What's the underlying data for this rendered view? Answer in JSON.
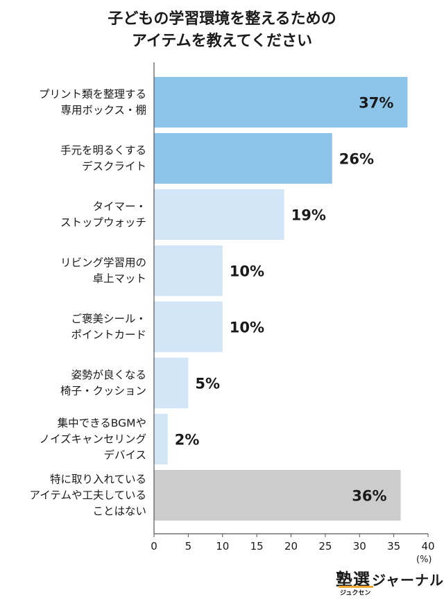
{
  "title_line1": "子どもの学習環境を整えるための",
  "title_line2": "アイテムを教えてください",
  "unit_label": "(%)",
  "logo": {
    "main": "塾選",
    "kana": "ジャーナル",
    "sub": "ジュクセン"
  },
  "chart_data": {
    "type": "bar",
    "orientation": "horizontal",
    "title": "子どもの学習環境を整えるための アイテムを教えてください",
    "categories": [
      [
        "プリント類を整理する",
        "専用ボックス・棚"
      ],
      [
        "手元を明るくする",
        "デスクライト"
      ],
      [
        "タイマー・",
        "ストップウォッチ"
      ],
      [
        "リビング学習用の",
        "卓上マット"
      ],
      [
        "ご褒美シール・",
        "ポイントカード"
      ],
      [
        "姿勢が良くなる",
        "椅子・クッション"
      ],
      [
        "集中できるBGMや",
        "ノイズキャンセリング",
        "デバイス"
      ],
      [
        "特に取り入れている",
        "アイテムや工夫している",
        "ことはない"
      ]
    ],
    "values": [
      37,
      26,
      19,
      10,
      10,
      5,
      2,
      36
    ],
    "value_labels": [
      "37%",
      "26%",
      "19%",
      "10%",
      "10%",
      "5%",
      "2%",
      "36%"
    ],
    "bar_colors": [
      "#8cc4ea",
      "#8cc4ea",
      "#d3e6f8",
      "#d3e6f8",
      "#d3e6f8",
      "#d3e6f8",
      "#d3e6f8",
      "#cccccc"
    ],
    "label_inside": [
      true,
      false,
      false,
      false,
      false,
      false,
      false,
      true
    ],
    "xlim": [
      0,
      40
    ],
    "xticks": [
      0,
      5,
      10,
      15,
      20,
      25,
      30,
      35,
      40
    ],
    "xunit": "(%)",
    "grid": false,
    "legend": "none"
  }
}
